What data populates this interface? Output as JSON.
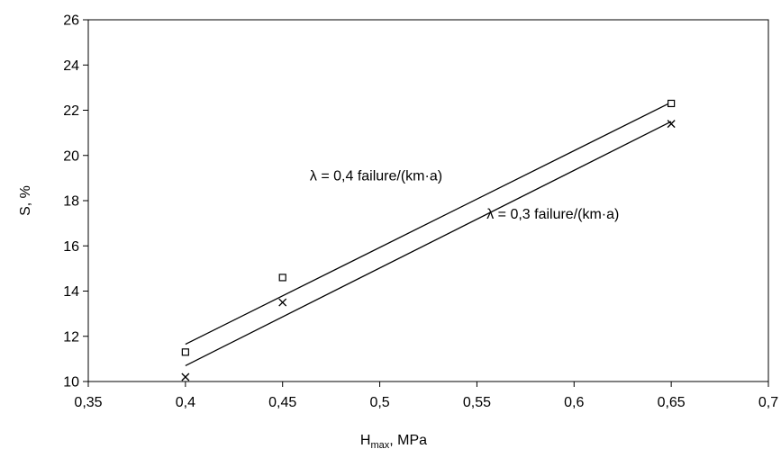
{
  "chart_data": {
    "type": "scatter",
    "x_axis": {
      "label_main": "H",
      "label_sub": "max",
      "label_rest": ", MPa",
      "min": 0.35,
      "max": 0.7,
      "ticks": [
        0.35,
        0.4,
        0.45,
        0.5,
        0.55,
        0.6,
        0.65,
        0.7
      ],
      "tick_labels": [
        "0,35",
        "0,4",
        "0,45",
        "0,5",
        "0,55",
        "0,6",
        "0,65",
        "0,7"
      ]
    },
    "y_axis": {
      "label": "S, %",
      "min": 10,
      "max": 26,
      "ticks": [
        10,
        12,
        14,
        16,
        18,
        20,
        22,
        24,
        26
      ],
      "tick_labels": [
        "10",
        "12",
        "14",
        "16",
        "18",
        "20",
        "22",
        "24",
        "26"
      ]
    },
    "grid": false,
    "series": [
      {
        "marker": "square",
        "points": [
          [
            0.4,
            11.3
          ],
          [
            0.45,
            14.6
          ],
          [
            0.65,
            22.3
          ]
        ],
        "trendline": [
          [
            0.4,
            11.65
          ],
          [
            0.65,
            22.35
          ]
        ]
      },
      {
        "marker": "x",
        "points": [
          [
            0.4,
            10.2
          ],
          [
            0.45,
            13.5
          ],
          [
            0.65,
            21.4
          ]
        ],
        "trendline": [
          [
            0.4,
            10.7
          ],
          [
            0.65,
            21.5
          ]
        ]
      }
    ],
    "annotations": [
      {
        "text": "λ = 0,4 failure/(km·a)",
        "x": 0.464,
        "y": 18.9
      },
      {
        "text": "λ = 0,3 failure/(km·a)",
        "x": 0.555,
        "y": 17.2
      }
    ]
  }
}
